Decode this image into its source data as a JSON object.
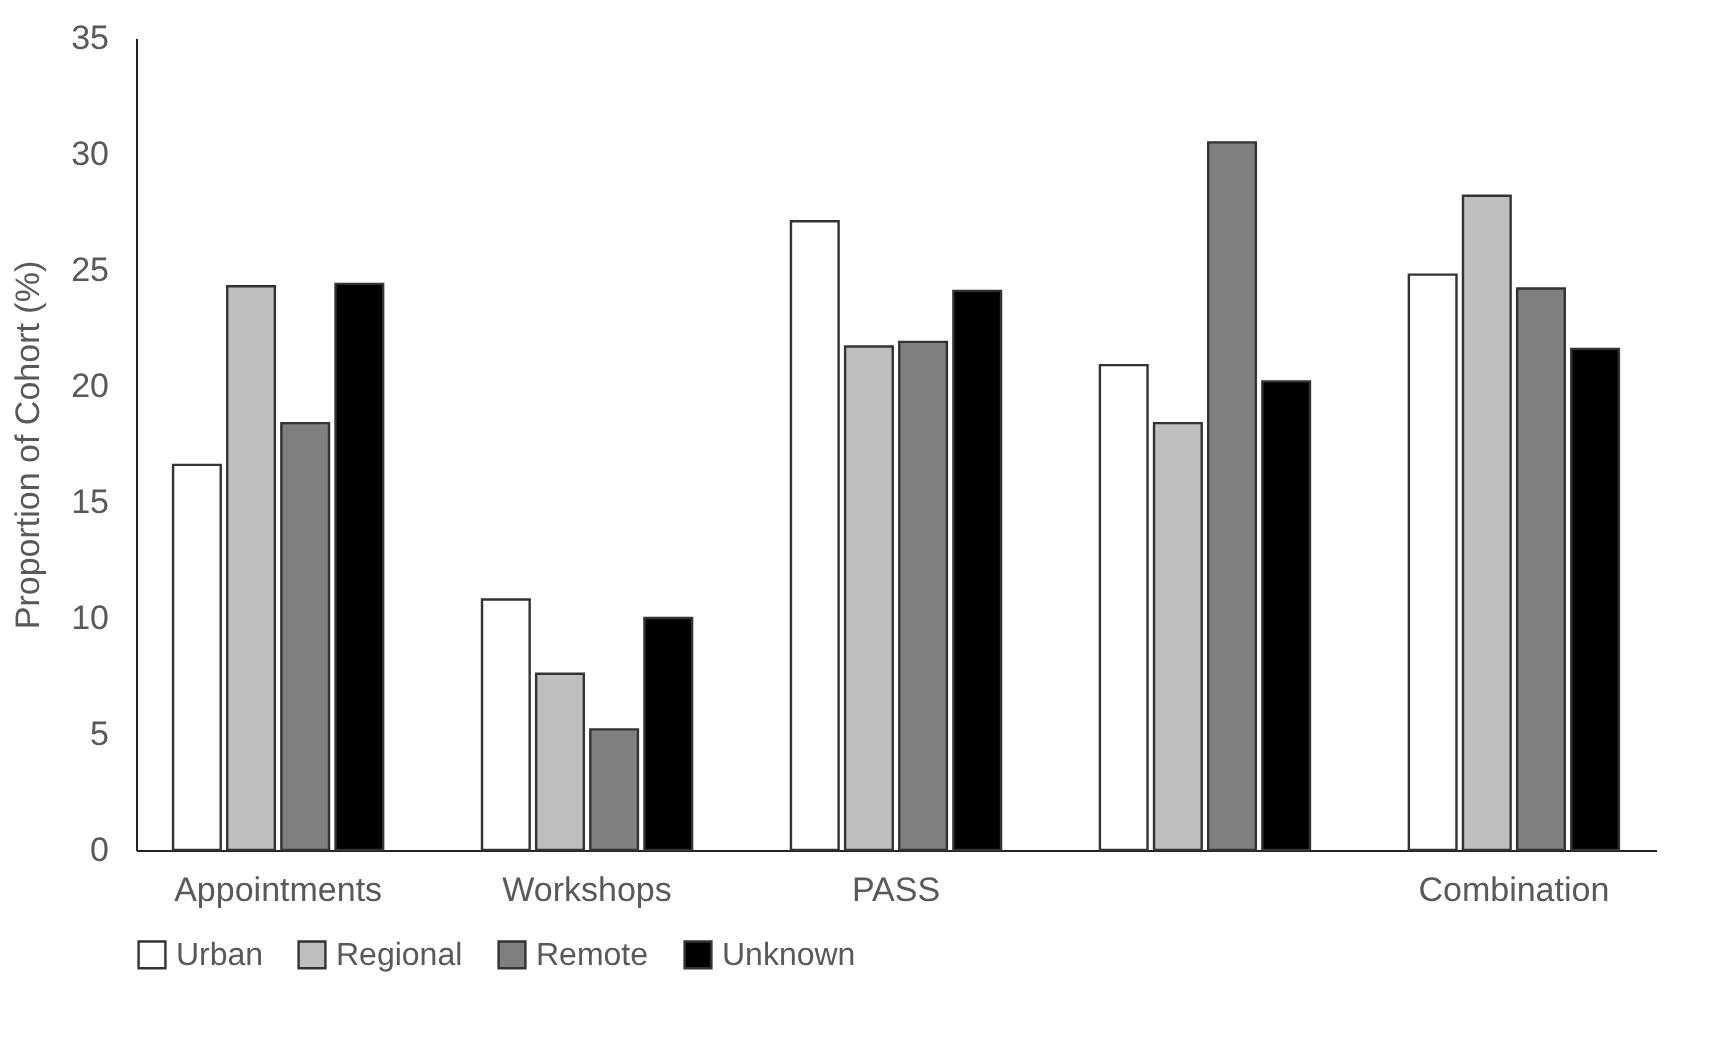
{
  "chart_data": {
    "type": "bar",
    "ylabel": "Proportion of Cohort (%)",
    "categories": [
      "Appointments",
      "Workshops",
      "PASS",
      null,
      "Combination"
    ],
    "series": [
      {
        "name": "Urban",
        "color": "#ffffff",
        "values": [
          16.6,
          10.8,
          27.1,
          20.9,
          24.8
        ]
      },
      {
        "name": "Regional",
        "color": "#bfbfbf",
        "values": [
          24.3,
          7.6,
          21.7,
          18.4,
          28.2
        ]
      },
      {
        "name": "Remote",
        "color": "#7f7f7f",
        "values": [
          18.4,
          5.2,
          21.9,
          30.5,
          24.2
        ]
      },
      {
        "name": "Unknown",
        "color": "#000000",
        "values": [
          24.4,
          10.0,
          24.1,
          20.2,
          21.6
        ]
      }
    ],
    "ylim": [
      0,
      35
    ],
    "yticks": [
      0,
      5,
      10,
      15,
      20,
      25,
      30,
      35
    ],
    "grid": false,
    "legend": "bottom"
  }
}
